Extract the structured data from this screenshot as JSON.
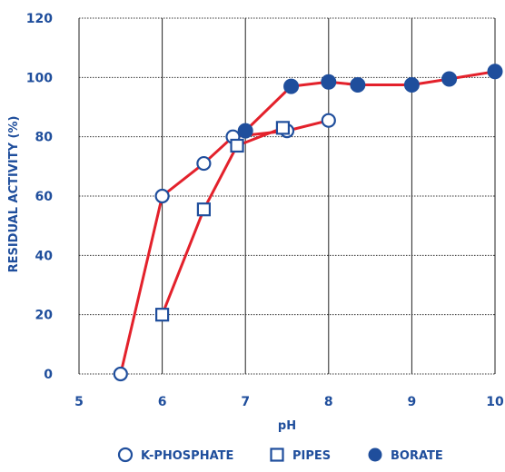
{
  "chart_data": {
    "type": "line",
    "title": "",
    "xlabel": "pH",
    "ylabel": "RESIDUAL ACTIVITY (%)",
    "xlim": [
      5,
      10
    ],
    "ylim": [
      0,
      120
    ],
    "xticks": [
      5,
      6,
      7,
      8,
      9,
      10
    ],
    "yticks": [
      0,
      20,
      40,
      60,
      80,
      100,
      120
    ],
    "grid": "x solid, y dotted",
    "legend_position": "bottom",
    "colors": {
      "line": "#e3212b",
      "marker": "#1f4e9c",
      "text": "#1f4e9c"
    },
    "series": [
      {
        "name": "K-PHOSPHATE",
        "marker": "open-circle",
        "x": [
          5.5,
          6.0,
          6.5,
          6.85,
          7.5,
          8.0
        ],
        "y": [
          0,
          60,
          71,
          80,
          82,
          85.5
        ]
      },
      {
        "name": "PIPES",
        "marker": "open-square",
        "x": [
          6.0,
          6.5,
          6.9,
          7.45
        ],
        "y": [
          20,
          55.5,
          77,
          83
        ]
      },
      {
        "name": "BORATE",
        "marker": "filled-circle",
        "x": [
          7.0,
          7.55,
          8.0,
          8.35,
          9.0,
          9.45,
          10.0
        ],
        "y": [
          82,
          97,
          98.5,
          97.5,
          97.5,
          99.5,
          102
        ]
      }
    ]
  }
}
